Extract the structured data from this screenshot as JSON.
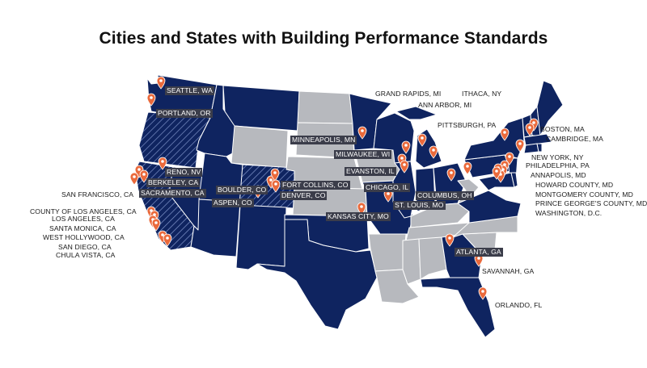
{
  "title": "Cities and States with Building Performance Standards",
  "colors": {
    "policy_state": "#0f2460",
    "other_state": "#b7b9be",
    "border": "#ffffff",
    "pin": "#ea6a3c",
    "label_bg": "#3b3d4a"
  },
  "legend_encoding": {
    "solid_navy": "state with building performance standard",
    "hatched_navy": "state with building performance standard (hatched)",
    "gray": "no state standard"
  },
  "labels": {
    "seattle": "SEATTLE, WA",
    "portland": "PORTLAND, OR",
    "reno": "RENO, NV",
    "berkeley": "BERKELEY, CA",
    "sacramento": "SACRAMENTO, CA",
    "san_francisco": "SAN FRANCISCO, CA",
    "la_county": "COUNTY OF LOS ANGELES, CA",
    "los_angeles": "LOS ANGELES, CA",
    "santa_monica": "SANTA MONICA, CA",
    "west_hollywood": "WEST HOLLYWOOD, CA",
    "san_diego": "SAN DIEGO, CA",
    "chula_vista": "CHULA VISTA, CA",
    "boulder": "BOULDER, CO",
    "fort_collins": "FORT COLLINS, CO",
    "denver": "DENVER, CO",
    "aspen": "ASPEN, CO",
    "minneapolis": "MINNEAPOLIS, MN",
    "milwaukee": "MILWAUKEE, WI",
    "evanston": "EVANSTON, IL",
    "chicago": "CHICAGO, IL",
    "st_louis": "ST. LOUIS, MO",
    "kansas_city": "KANSAS CITY, MO",
    "columbus": "COLUMBUS, OH",
    "grand_rapids": "GRAND RAPIDS, MI",
    "ann_arbor": "ANN ARBOR, MI",
    "pittsburgh": "PITTSBURGH, PA",
    "ithaca": "ITHACA, NY",
    "boston": "BOSTON, MA",
    "cambridge": "CAMBRIDGE, MA",
    "new_york": "NEW YORK, NY",
    "philadelphia": "PHILADELPHIA, PA",
    "annapolis": "ANNAPOLIS, MD",
    "howard_county": "HOWARD COUNTY, MD",
    "montgomery_county": "MONTGOMERY COUNTY, MD",
    "prince_georges": "PRINCE GEORGE'S COUNTY, MD",
    "washington_dc": "WASHINGTON, D.C.",
    "atlanta": "ATLANTA, GA",
    "savannah": "SAVANNAH, GA",
    "orlando": "ORLANDO, FL"
  }
}
